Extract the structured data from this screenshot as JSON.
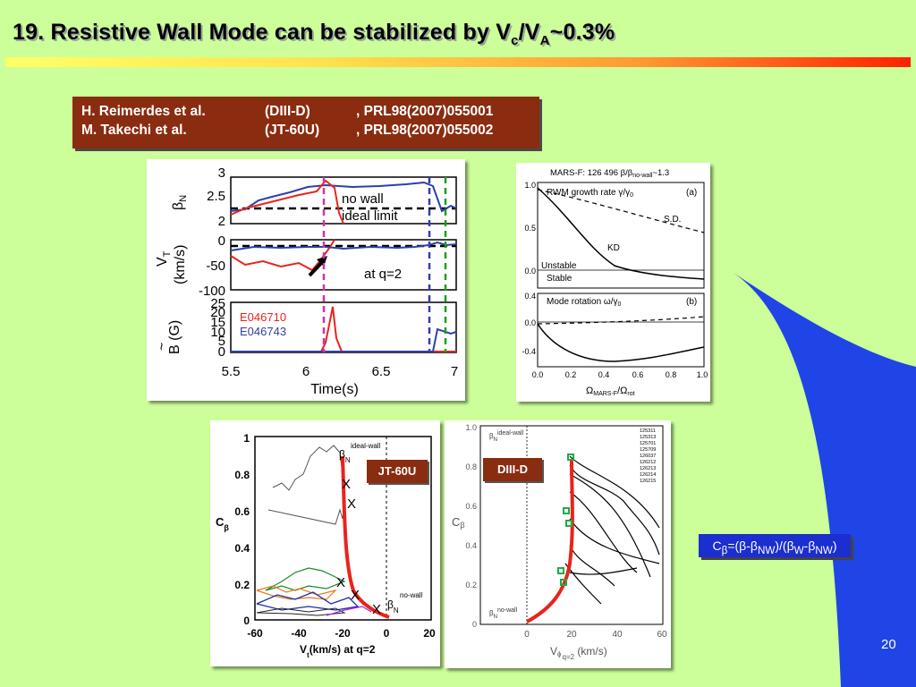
{
  "title": {
    "prefix": "19. Resistive Wall Mode can be stabilized by V",
    "sub1": "c",
    "mid": "/V",
    "sub2": "A",
    "suffix": "~0.3%"
  },
  "references": [
    {
      "author": "H. Reimerdes et al.",
      "device": "(DIII-D)",
      "journal": ", PRL98(2007)055001"
    },
    {
      "author": "M. Takechi et al.",
      "device": "(JT-60U)",
      "journal": ", PRL98(2007)055002"
    }
  ],
  "fig1": {
    "yticks_top": [
      "3",
      "2.5",
      "2"
    ],
    "ylabel_top": "β",
    "ylabel_top_sub": "N",
    "legend_nowall": "no wall",
    "legend_ideal": "ideal limit",
    "yticks_mid": [
      "0",
      "-50",
      "-100"
    ],
    "ylabel_mid": "V",
    "ylabel_mid_sub": "T",
    "ylabel_mid_unit": "(km/s)",
    "annot_q2": "at q=2",
    "yticks_bot": [
      "25",
      "20",
      "15",
      "10",
      "5",
      "0"
    ],
    "ylabel_bot": "B (G)",
    "ylabel_bot_tilde": "~",
    "legend_red": "E046710",
    "legend_blue": "E046743",
    "xticks": [
      "5.5",
      "6",
      "6.5",
      "7"
    ],
    "xlabel": "Time(s)",
    "red_color": "#e8241c",
    "blue_color": "#2f3fa8"
  },
  "fig2": {
    "title_prefix": "MARS-F: 126 496 β/β",
    "title_sub": "no-wall",
    "title_suffix": "~1.3",
    "label_a": "(a)",
    "label_b": "(b)",
    "growth": "RWM growth rate γ/γ",
    "growth_sub": "0",
    "sd": "S.D.",
    "kd": "KD",
    "unstable": "Unstable",
    "stable": "Stable",
    "rotation": "Mode rotation ω/γ",
    "rotation_sub": "0",
    "yticks_a": [
      "1.0",
      "0.5",
      "0.0"
    ],
    "yticks_b": [
      "0.4",
      "0.0",
      "-0.4"
    ],
    "xticks": [
      "0.0",
      "0.2",
      "0.4",
      "0.6",
      "0.8",
      "1.0"
    ],
    "xlabel": "Ω",
    "xlabel_sub": "MARS-F",
    "xlabel_suffix": "/Ω",
    "xlabel_sub2": "rot"
  },
  "fig3": {
    "tag": "JT-60U",
    "yticks": [
      "1",
      "0.8",
      "0.6",
      "0.4",
      "0.2",
      "0"
    ],
    "ylabel": "C",
    "ylabel_sub": "β",
    "xticks": [
      "-60",
      "-40",
      "-20",
      "0",
      "20"
    ],
    "xlabel": "V",
    "xlabel_sub": "t",
    "xlabel_suffix": "(km/s) at q=2",
    "beta_top": "β",
    "beta_top_sub": "N",
    "ideal_wall": "ideal-wall",
    "beta_bot": "β",
    "beta_bot_sub": "N",
    "no_wall": "no-wall",
    "marker": "X"
  },
  "fig4": {
    "tag": "DIII-D",
    "yticks": [
      "1.0",
      "0.8",
      "0.6",
      "0.4",
      "0.2",
      "0"
    ],
    "ylabel": "C",
    "ylabel_sub": "β",
    "xticks": [
      "0",
      "20",
      "40",
      "60"
    ],
    "xlabel": "V",
    "xlabel_sub": "ϕ",
    "xlabel_sub2": "q=2",
    "xlabel_suffix": " (km/s)",
    "ideal_wall": "ideal-wall",
    "no_wall": "no-wall",
    "beta": "β",
    "beta_sub": "N",
    "shots": [
      "125311",
      "125313",
      "125701",
      "125709",
      "126037",
      "126212",
      "126213",
      "126214",
      "126215"
    ]
  },
  "cbeta_formula": {
    "a": "C",
    "b": "β",
    "c": "=(β-β",
    "d": "NW",
    "e": ")/(β",
    "f": "W",
    "g": "-β",
    "h": "NW",
    "i": ")"
  },
  "page_number": "20",
  "colors": {
    "background": "#ccff99",
    "accent_band": "#1f45e6",
    "ref_box": "#8a2c10"
  }
}
